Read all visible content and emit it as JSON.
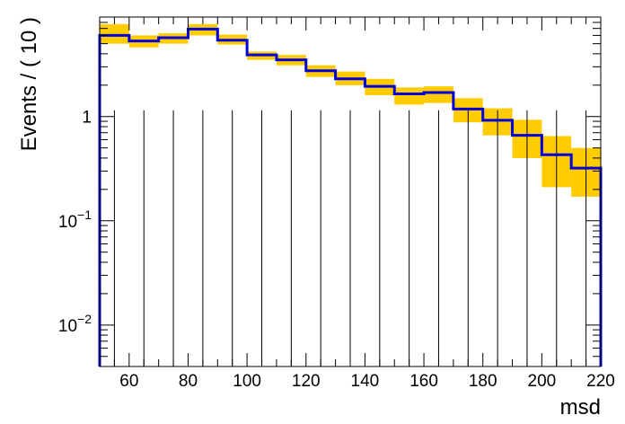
{
  "chart_data": {
    "type": "histogram",
    "xlabel": "msd",
    "ylabel": "Events / ( 10 )",
    "xlim": [
      50,
      220
    ],
    "ylim": [
      0.004,
      9
    ],
    "yscale": "log",
    "x_ticks": [
      "60",
      "80",
      "100",
      "120",
      "140",
      "160",
      "180",
      "200",
      "220"
    ],
    "y_ticks": [
      {
        "base": "1",
        "exp": ""
      },
      {
        "base": "10",
        "exp": "−1"
      },
      {
        "base": "10",
        "exp": "−2"
      }
    ],
    "bin_edges": [
      50,
      60,
      70,
      80,
      90,
      100,
      110,
      120,
      130,
      140,
      150,
      160,
      170,
      180,
      190,
      200,
      210,
      220
    ],
    "series": [
      {
        "color": "#0000dd",
        "values": [
          6.0,
          5.3,
          5.7,
          6.9,
          5.4,
          3.9,
          3.5,
          2.75,
          2.3,
          1.95,
          1.65,
          1.7,
          1.18,
          0.92,
          0.66,
          0.43,
          0.32
        ]
      }
    ],
    "error_band": {
      "color": "#ffcc00",
      "lower": [
        5.0,
        4.6,
        5.0,
        6.0,
        4.9,
        3.5,
        3.1,
        2.4,
        2.0,
        1.6,
        1.3,
        1.35,
        0.88,
        0.66,
        0.4,
        0.21,
        0.17
      ],
      "upper": [
        7.7,
        6.0,
        6.3,
        7.7,
        6.1,
        4.2,
        3.9,
        3.1,
        2.7,
        2.3,
        1.9,
        1.95,
        1.5,
        1.2,
        0.93,
        0.65,
        0.5
      ]
    },
    "data_points": {
      "x": [
        55,
        65,
        75,
        85,
        95,
        105,
        115,
        125,
        135,
        145,
        155,
        165,
        175,
        185,
        195,
        205,
        215
      ],
      "values": [
        0,
        0,
        0,
        0,
        0,
        0,
        0,
        0,
        0,
        0,
        0,
        0,
        0,
        0,
        0,
        0,
        0
      ],
      "upper": [
        1.15,
        1.15,
        1.15,
        1.15,
        1.15,
        1.15,
        1.15,
        1.15,
        1.15,
        1.15,
        1.15,
        1.15,
        1.15,
        1.15,
        1.15,
        1.15,
        1.15
      ]
    }
  }
}
